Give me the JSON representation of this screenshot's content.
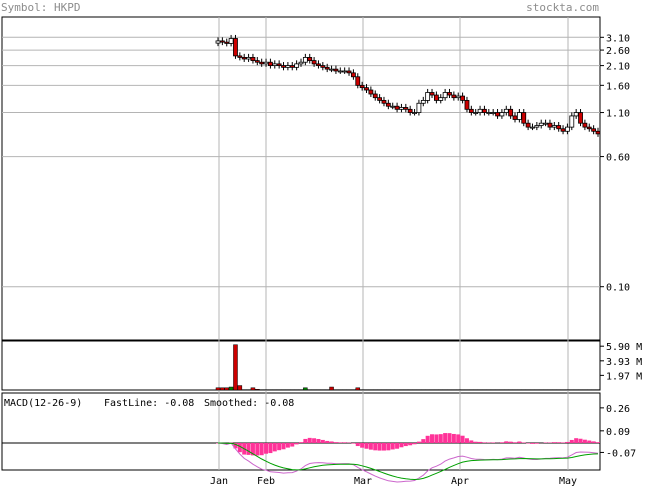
{
  "header": {
    "symbol_label": "Symbol: HKPD",
    "brand": "stockta.com"
  },
  "chart_data": {
    "type": "candlestick",
    "symbol": "HKPD",
    "scale": "log",
    "price_ticks": [
      "3.10",
      "2.60",
      "2.10",
      "1.60",
      "1.10",
      "0.60",
      "0.10"
    ],
    "volume_ticks": [
      "5.90 M",
      "3.93 M",
      "1.97 M"
    ],
    "macd_ticks": [
      "0.26",
      "0.09",
      "-0.07"
    ],
    "month_labels": [
      "Jan",
      "Feb",
      "Mar",
      "Apr",
      "May"
    ],
    "macd_legend": {
      "title": "MACD(12-26-9)",
      "fast": "FastLine: -0.08",
      "smooth": "Smoothed: -0.08"
    },
    "price_range": [
      0.048,
      4.1
    ],
    "volume_max_m": 6.6,
    "macd_range": [
      -0.2,
      0.37
    ],
    "colors": {
      "up": "#ffffff",
      "down": "#cc0000",
      "volume": "#cc0000",
      "volume_up": "#008000",
      "fast": "#cc66cc",
      "smooth": "#00a000",
      "hist": "#ff3399",
      "grid": "#b4b4b4"
    },
    "close": [
      2.95,
      2.9,
      2.85,
      3.05,
      2.4,
      2.35,
      2.3,
      2.35,
      2.25,
      2.2,
      2.15,
      2.2,
      2.1,
      2.15,
      2.1,
      2.05,
      2.1,
      2.05,
      2.15,
      2.2,
      2.35,
      2.25,
      2.15,
      2.1,
      2.05,
      2.0,
      2.0,
      1.95,
      1.95,
      1.95,
      1.9,
      1.8,
      1.6,
      1.55,
      1.5,
      1.42,
      1.35,
      1.3,
      1.25,
      1.2,
      1.2,
      1.15,
      1.18,
      1.15,
      1.1,
      1.1,
      1.25,
      1.3,
      1.45,
      1.4,
      1.3,
      1.35,
      1.45,
      1.4,
      1.35,
      1.38,
      1.3,
      1.15,
      1.1,
      1.1,
      1.15,
      1.1,
      1.1,
      1.1,
      1.05,
      1.1,
      1.15,
      1.05,
      1.0,
      1.1,
      0.95,
      0.9,
      0.9,
      0.92,
      0.95,
      0.95,
      0.9,
      0.92,
      0.88,
      0.85,
      0.9,
      1.05,
      1.1,
      0.95,
      0.9,
      0.88,
      0.85,
      0.82
    ],
    "volume_m": [
      0.3,
      0.3,
      0.3,
      0.4,
      6.1,
      0.6,
      0.05,
      0.05,
      0.3,
      0.1,
      0.05,
      0.05,
      0.05,
      0.05,
      0.05,
      0.05,
      0.05,
      0.05,
      0.05,
      0.05,
      0.3,
      0.05,
      0.05,
      0.05,
      0.05,
      0.05,
      0.4,
      0.05,
      0.05,
      0.05,
      0.05,
      0.05,
      0.3,
      0.05,
      0.05,
      0.05,
      0.05,
      0.05,
      0.05,
      0.05,
      0.05,
      0.05,
      0.05,
      0.05,
      0.05,
      0.05,
      0.05,
      0.05,
      0.05,
      0.05,
      0.05,
      0.05,
      0.05,
      0.05,
      0.05,
      0.05,
      0.05,
      0.05,
      0.05,
      0.05,
      0.05,
      0.05,
      0.05,
      0.05,
      0.05,
      0.05,
      0.05,
      0.05,
      0.05,
      0.05,
      0.05,
      0.05,
      0.05,
      0.05,
      0.05,
      0.05,
      0.05,
      0.05,
      0.05,
      0.05,
      0.05,
      0.05,
      0.05,
      0.05,
      0.05,
      0.05,
      0.05,
      0.05
    ]
  }
}
